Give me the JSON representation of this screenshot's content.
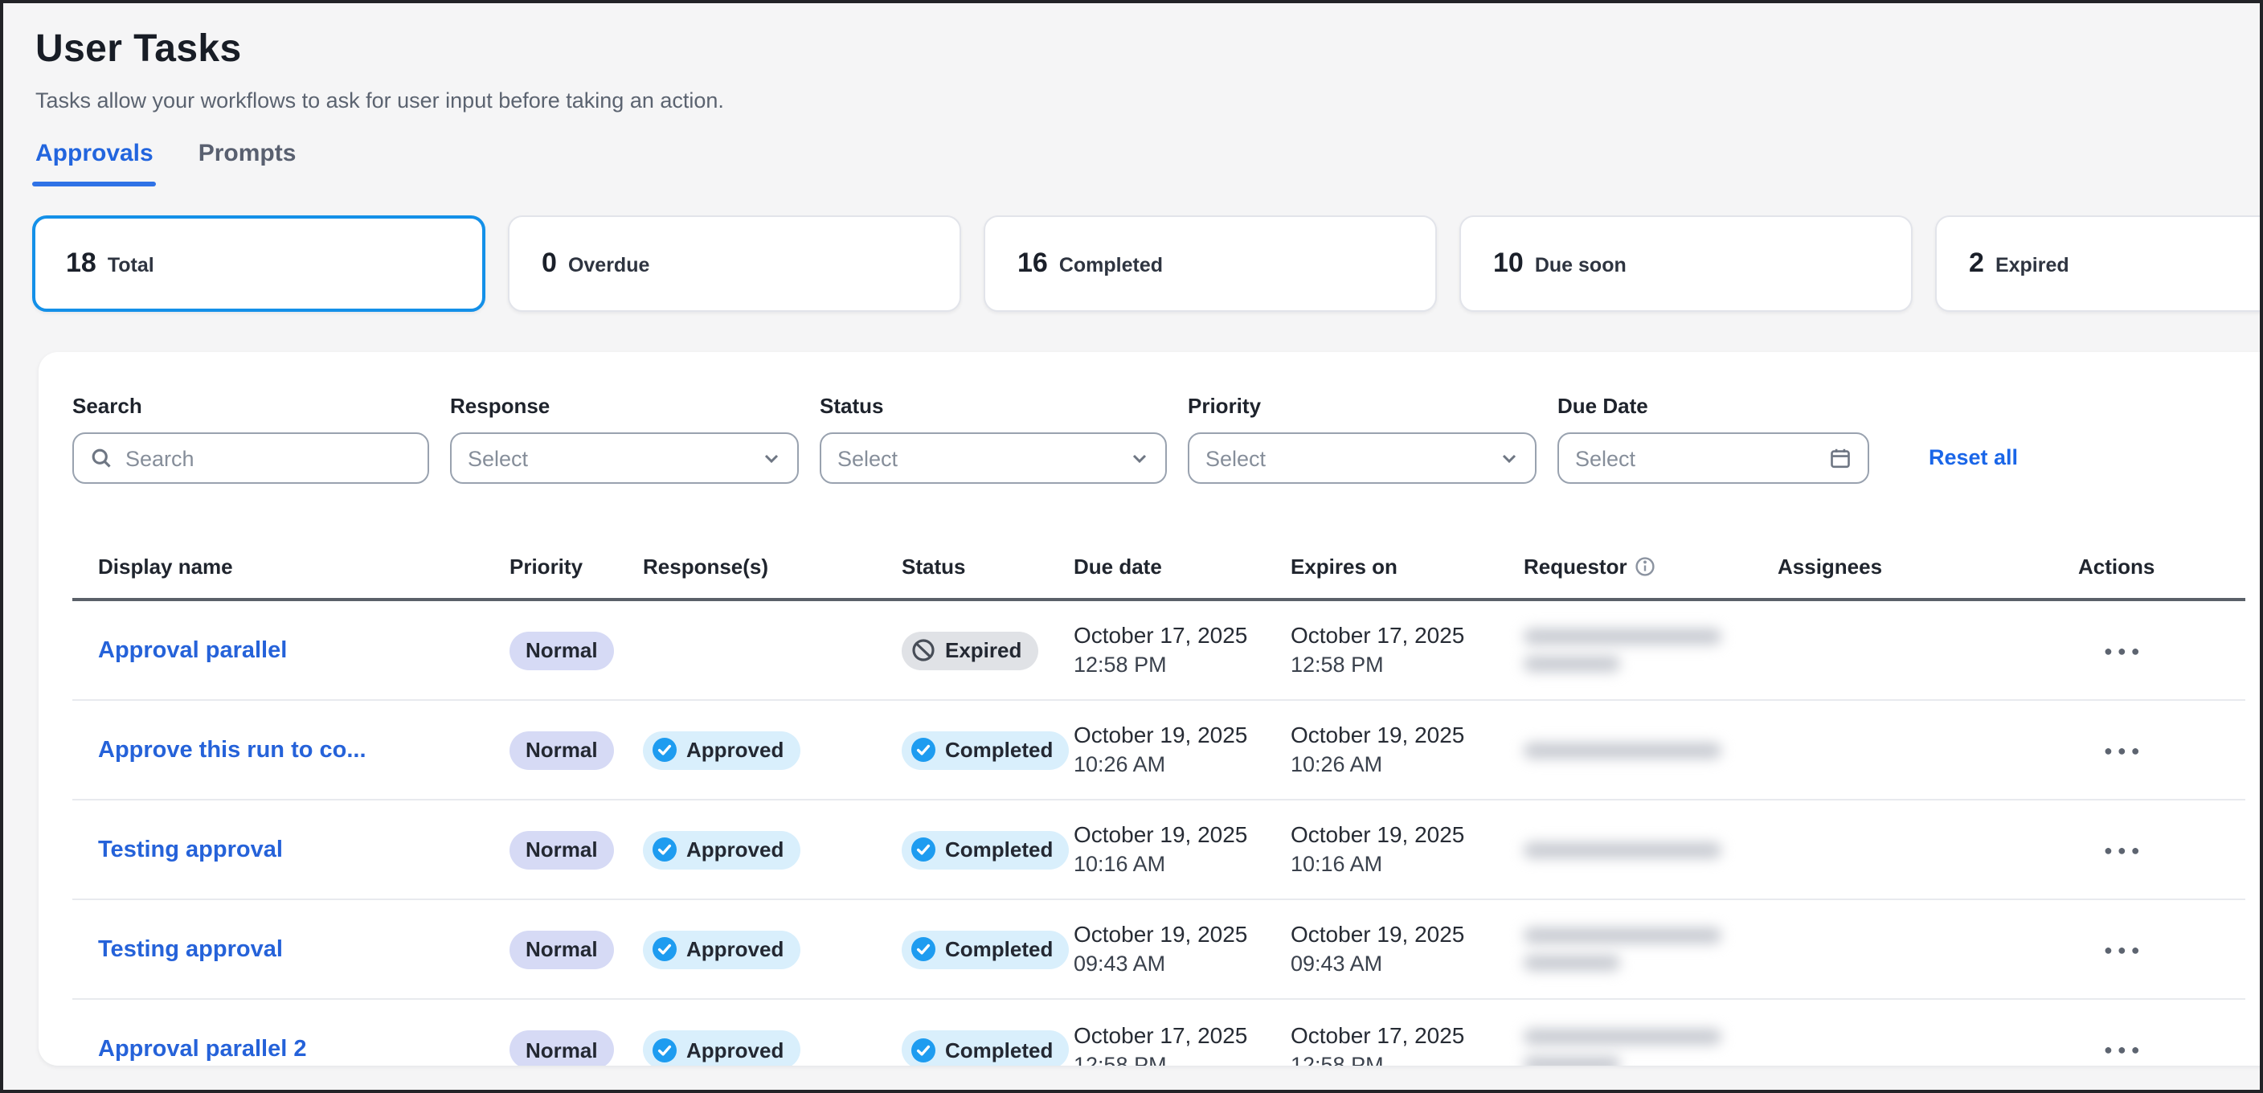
{
  "page": {
    "title": "User Tasks",
    "subtitle": "Tasks allow your workflows to ask for user input before taking an action."
  },
  "tabs": [
    {
      "label": "Approvals",
      "active": true
    },
    {
      "label": "Prompts",
      "active": false
    }
  ],
  "stats": [
    {
      "value": "18",
      "label": "Total",
      "selected": true
    },
    {
      "value": "0",
      "label": "Overdue",
      "selected": false
    },
    {
      "value": "16",
      "label": "Completed",
      "selected": false
    },
    {
      "value": "10",
      "label": "Due soon",
      "selected": false
    },
    {
      "value": "2",
      "label": "Expired",
      "selected": false
    }
  ],
  "filters": {
    "search": {
      "label": "Search",
      "placeholder": "Search"
    },
    "response": {
      "label": "Response",
      "placeholder": "Select"
    },
    "status": {
      "label": "Status",
      "placeholder": "Select"
    },
    "priority": {
      "label": "Priority",
      "placeholder": "Select"
    },
    "due_date": {
      "label": "Due Date",
      "placeholder": "Select"
    },
    "reset_label": "Reset all"
  },
  "table": {
    "columns": [
      "Display name",
      "Priority",
      "Response(s)",
      "Status",
      "Due date",
      "Expires on",
      "Requestor",
      "Assignees",
      "Actions"
    ],
    "rows": [
      {
        "name": "Approval parallel",
        "priority": "Normal",
        "response": "",
        "status": "Expired",
        "status_kind": "expired",
        "due_date": "October 17, 2025",
        "due_time": "12:58 PM",
        "expires_date": "October 17, 2025",
        "expires_time": "12:58 PM",
        "requestor_redacted": true,
        "requestor_lines": 2
      },
      {
        "name": "Approve this run to co...",
        "priority": "Normal",
        "response": "Approved",
        "status": "Completed",
        "status_kind": "completed",
        "due_date": "October 19, 2025",
        "due_time": "10:26 AM",
        "expires_date": "October 19, 2025",
        "expires_time": "10:26 AM",
        "requestor_redacted": true,
        "requestor_lines": 1
      },
      {
        "name": "Testing approval",
        "priority": "Normal",
        "response": "Approved",
        "status": "Completed",
        "status_kind": "completed",
        "due_date": "October 19, 2025",
        "due_time": "10:16 AM",
        "expires_date": "October 19, 2025",
        "expires_time": "10:16 AM",
        "requestor_redacted": true,
        "requestor_lines": 1
      },
      {
        "name": "Testing approval",
        "priority": "Normal",
        "response": "Approved",
        "status": "Completed",
        "status_kind": "completed",
        "due_date": "October 19, 2025",
        "due_time": "09:43 AM",
        "expires_date": "October 19, 2025",
        "expires_time": "09:43 AM",
        "requestor_redacted": true,
        "requestor_lines": 2
      },
      {
        "name": "Approval parallel 2",
        "priority": "Normal",
        "response": "Approved",
        "status": "Completed",
        "status_kind": "completed",
        "due_date": "October 17, 2025",
        "due_time": "12:58 PM",
        "expires_date": "October 17, 2025",
        "expires_time": "12:58 PM",
        "requestor_redacted": true,
        "requestor_lines": 2
      }
    ]
  },
  "colors": {
    "accent_blue": "#2f72e6",
    "selected_card_border": "#1490e8",
    "link_blue": "#2562d9",
    "badge_normal_bg": "#d6daf5",
    "badge_completed_bg": "#d9effc",
    "badge_completed_icon": "#1e9cf0",
    "badge_expired_bg": "#e0e2e6",
    "page_background": "#f5f5f6"
  }
}
